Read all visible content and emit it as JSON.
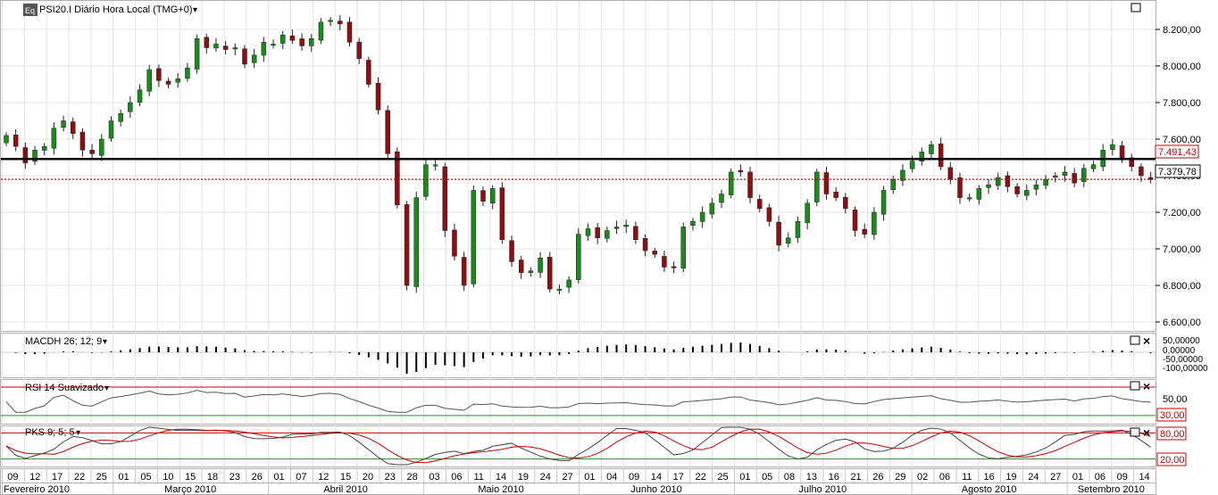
{
  "main_panel": {
    "title": "PSI20.I Diário Hora Local (TMG+0)",
    "price_labels": [
      "8.200,00",
      "8.000,00",
      "7.800,00",
      "7.600,00",
      "7.400,00",
      "7.200,00",
      "7.000,00",
      "6.800,00",
      "6.600,00"
    ],
    "black_line_label": "7.491,43",
    "current_price_label": "7.379,78"
  },
  "macd_panel": {
    "title": "MACDH 26; 12; 9",
    "labels": [
      "50,00000",
      "0,00000",
      "-50,00000",
      "-100,00000"
    ]
  },
  "rsi_panel": {
    "title": "RSI 14 Suavizado",
    "labels": [
      "50,00"
    ],
    "threshold_label": "30,00"
  },
  "pks_panel": {
    "title": "PKS 9; 5; 5",
    "upper_label": "80,00",
    "lower_label": "20,00"
  },
  "x_axis": {
    "day_ticks": [
      "09",
      "12",
      "17",
      "22",
      "25",
      "01",
      "05",
      "10",
      "15",
      "18",
      "23",
      "26",
      "01",
      "07",
      "12",
      "15",
      "20",
      "23",
      "28",
      "03",
      "06",
      "11",
      "14",
      "19",
      "24",
      "27",
      "01",
      "04",
      "09",
      "14",
      "17",
      "22",
      "25",
      "01",
      "05",
      "08",
      "13",
      "16",
      "21",
      "26",
      "29",
      "02",
      "06",
      "11",
      "16",
      "19",
      "24",
      "27",
      "01",
      "06",
      "09",
      "14"
    ],
    "month_labels": [
      "Fevereiro 2010",
      "Março 2010",
      "Abril 2010",
      "Maio 2010",
      "Junho 2010",
      "Julho 2010",
      "Agosto 2010",
      "Setembro 2010"
    ]
  },
  "icons": {
    "app_icon_text": "Eq",
    "dropdown": "▾",
    "maximize": "□",
    "close": "×"
  },
  "colors": {
    "up_candle": "#1a8a1a",
    "down_candle": "#8b1010",
    "signal_red": "#cc0000",
    "support_line": "#000000"
  },
  "chart_data": [
    {
      "type": "candlestick",
      "title": "PSI20.I Diário Hora Local (TMG+0)",
      "ylim": [
        6550,
        8300
      ],
      "horizontal_line": 7491.43,
      "last_price": 7379.78,
      "closes": [
        7620,
        7560,
        7470,
        7540,
        7560,
        7660,
        7700,
        7630,
        7540,
        7520,
        7600,
        7700,
        7740,
        7800,
        7870,
        7980,
        7920,
        7900,
        7930,
        7990,
        8150,
        8100,
        8120,
        8090,
        8100,
        8010,
        8060,
        8130,
        8120,
        8170,
        8140,
        8110,
        8150,
        8240,
        8250,
        8230,
        8130,
        8040,
        7900,
        7760,
        7520,
        7240,
        6800,
        7280,
        7460,
        7460,
        7100,
        6960,
        6800,
        7320,
        7260,
        7330,
        7050,
        6930,
        6870,
        6880,
        6950,
        6780,
        6780,
        6830,
        7080,
        7110,
        7060,
        7100,
        7120,
        7130,
        7050,
        6990,
        6970,
        6900,
        6900,
        7120,
        7150,
        7200,
        7250,
        7300,
        7420,
        7420,
        7280,
        7220,
        7150,
        7020,
        7060,
        7150,
        7250,
        7420,
        7300,
        7280,
        7220,
        7100,
        7080,
        7200,
        7320,
        7380,
        7430,
        7480,
        7530,
        7570,
        7450,
        7380,
        7280,
        7280,
        7330,
        7350,
        7390,
        7340,
        7300,
        7320,
        7350,
        7380,
        7400,
        7420,
        7360,
        7440,
        7460,
        7540,
        7570,
        7490,
        7450,
        7400,
        7379.78
      ],
      "x_tick_labels": [
        "09",
        "12",
        "17",
        "22",
        "25",
        "01",
        "05",
        "10",
        "15",
        "18",
        "23",
        "26",
        "01",
        "07",
        "12",
        "15",
        "20",
        "23",
        "28",
        "03",
        "06",
        "11",
        "14",
        "19",
        "24",
        "27",
        "01",
        "04",
        "09",
        "14",
        "17",
        "22",
        "25",
        "01",
        "05",
        "08",
        "13",
        "16",
        "21",
        "26",
        "29",
        "02",
        "06",
        "11",
        "16",
        "19",
        "24",
        "27",
        "01",
        "06",
        "09",
        "14"
      ],
      "x_month_labels": [
        "Fevereiro 2010",
        "Março 2010",
        "Abril 2010",
        "Maio 2010",
        "Junho 2010",
        "Julho 2010",
        "Agosto 2010",
        "Setembro 2010"
      ],
      "y_tick_labels": [
        "8.200,00",
        "8.000,00",
        "7.800,00",
        "7.600,00",
        "7.400,00",
        "7.200,00",
        "7.000,00",
        "6.800,00",
        "6.600,00"
      ]
    },
    {
      "type": "bar",
      "title": "MACDH 26; 12; 9",
      "ylim": [
        -130,
        60
      ],
      "y_tick_labels": [
        "50,00000",
        "0,00000",
        "-50,00000",
        "-100,00000"
      ]
    },
    {
      "type": "line",
      "title": "RSI 14 Suavizado",
      "ylim": [
        0,
        100
      ],
      "threshold": 30,
      "y_tick_labels": [
        "50,00",
        "30,00"
      ]
    },
    {
      "type": "line",
      "title": "PKS 9; 5; 5",
      "ylim": [
        0,
        100
      ],
      "bands": [
        80,
        20
      ],
      "y_tick_labels": [
        "80,00",
        "20,00"
      ]
    }
  ]
}
